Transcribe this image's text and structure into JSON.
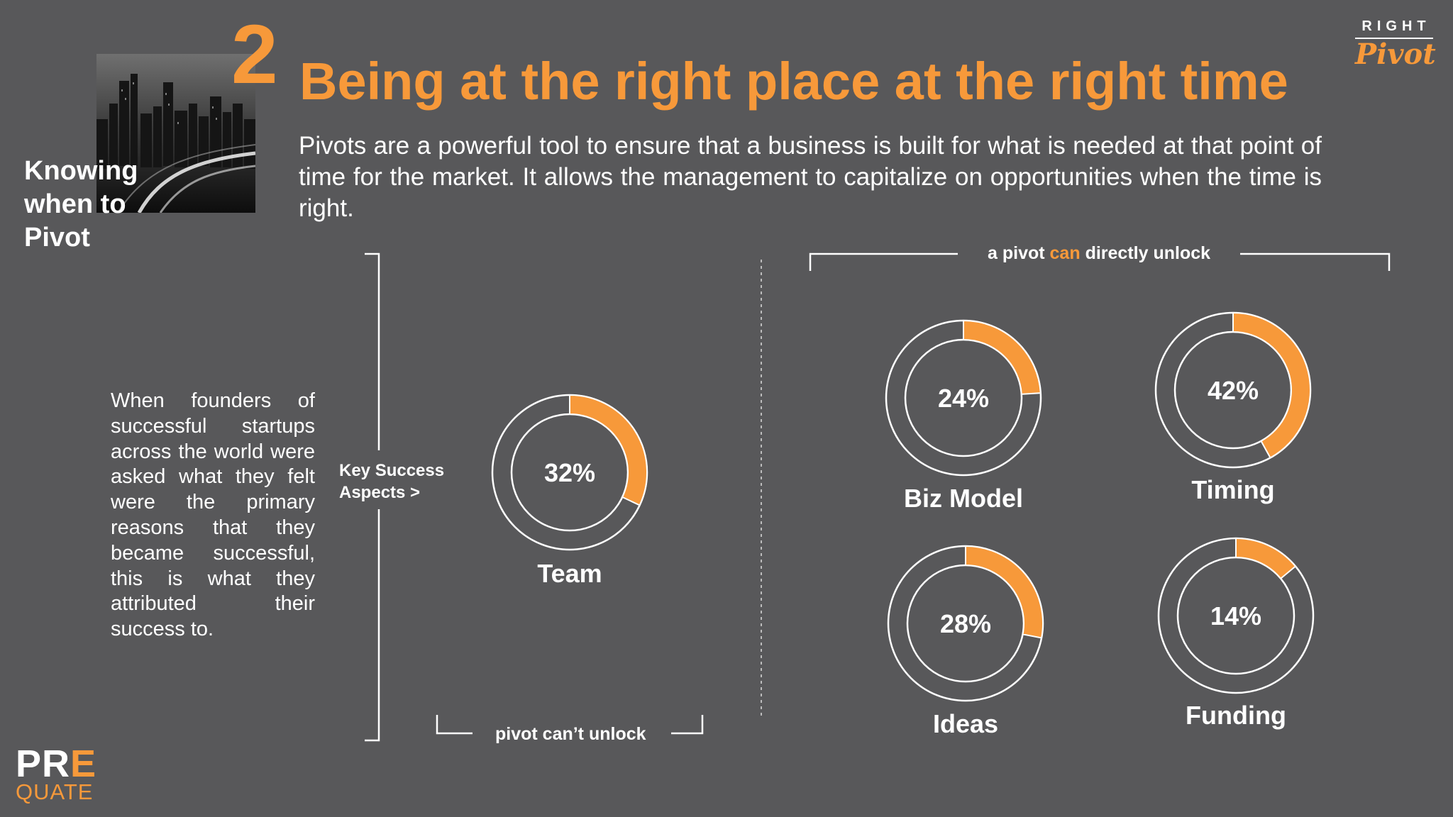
{
  "header": {
    "section_number": "2",
    "title": "Being at the right place at the right time",
    "intro": "Pivots are a powerful tool to ensure that a business is built for what is needed at that point of time for the market. It allows the management to capitalize on opportunities when the time is right."
  },
  "sidebar": {
    "heading_lines": [
      "Knowing",
      "when to",
      "Pivot"
    ],
    "body": "When founders of successful startups across the world were asked what they felt were the primary reasons that they became successful, this is what they attributed their success to."
  },
  "key_success_lines": [
    "Key Success",
    "Aspects >"
  ],
  "brackets": {
    "cant_unlock": "pivot can’t unlock",
    "can_unlock_prefix": "a pivot",
    "can_unlock_accent": "can",
    "can_unlock_suffix": "directly unlock"
  },
  "donuts": [
    {
      "label": "Team",
      "value": "32%",
      "fraction": 0.32
    },
    {
      "label": "Biz Model",
      "value": "24%",
      "fraction": 0.24
    },
    {
      "label": "Timing",
      "value": "42%",
      "fraction": 0.42
    },
    {
      "label": "Ideas",
      "value": "28%",
      "fraction": 0.28
    },
    {
      "label": "Funding",
      "value": "14%",
      "fraction": 0.14
    }
  ],
  "logos": {
    "right_word": "RIGHT",
    "pivot_script": "Pivot",
    "pre": "PR",
    "pre_accent": "E",
    "quate": "QUATE"
  },
  "colors": {
    "background": "#58585a",
    "accent": "#f7993a",
    "text": "#ffffff"
  },
  "icons": [
    "city-skyline-photo"
  ]
}
